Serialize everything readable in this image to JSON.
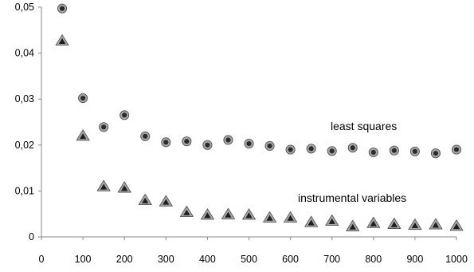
{
  "chart_data": {
    "type": "scatter",
    "x_axis": {
      "range": [
        0,
        1000
      ],
      "ticks": [
        "0",
        "100",
        "200",
        "300",
        "400",
        "500",
        "600",
        "700",
        "800",
        "900",
        "1000"
      ]
    },
    "y_axis": {
      "range": [
        0,
        0.05
      ],
      "ticks": [
        "0",
        "0,01",
        "0,02",
        "0,03",
        "0,04",
        "0,05"
      ]
    },
    "grid": false,
    "legend": "none",
    "annotations": [
      {
        "text": "least squares",
        "series": 0
      },
      {
        "text": "instrumental variables",
        "series": 1
      }
    ],
    "series": [
      {
        "marker": "circle",
        "x": [
          50,
          100,
          150,
          200,
          250,
          300,
          350,
          400,
          450,
          500,
          550,
          600,
          650,
          700,
          750,
          800,
          850,
          900,
          950,
          1000
        ],
        "y": [
          0.0497,
          0.0302,
          0.0239,
          0.0265,
          0.0219,
          0.0206,
          0.0208,
          0.02,
          0.0211,
          0.0203,
          0.0198,
          0.019,
          0.0192,
          0.0187,
          0.0194,
          0.0184,
          0.0188,
          0.0186,
          0.0182,
          0.019
        ]
      },
      {
        "marker": "triangle",
        "x": [
          50,
          100,
          150,
          200,
          250,
          300,
          350,
          400,
          450,
          500,
          550,
          600,
          650,
          700,
          750,
          800,
          850,
          900,
          950,
          1000
        ],
        "y": [
          0.0427,
          0.022,
          0.011,
          0.0107,
          0.008,
          0.0077,
          0.0054,
          0.0048,
          0.0049,
          0.0048,
          0.0042,
          0.0042,
          0.0032,
          0.0035,
          0.0023,
          0.003,
          0.0028,
          0.0026,
          0.0027,
          0.0024
        ]
      }
    ],
    "colors": {
      "marker_outline": "#555555",
      "circle_fill": "#2b2b2b",
      "triangle_fill": "#1f1f1f",
      "axis": "#888888"
    }
  }
}
